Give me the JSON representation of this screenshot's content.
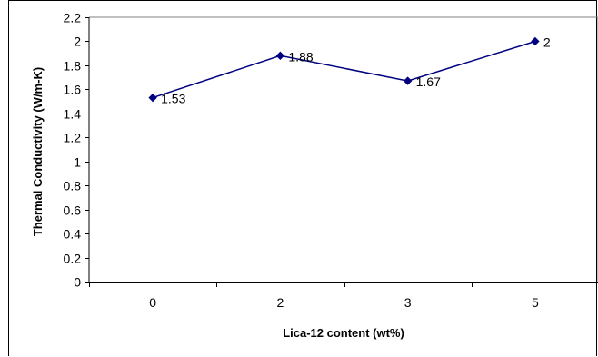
{
  "chart_data": {
    "type": "line",
    "title": "",
    "xlabel": "Lica-12 content (wt%)",
    "ylabel": "Thermal Conductivity (W/m-K)",
    "categories": [
      "0",
      "2",
      "3",
      "5"
    ],
    "series": [
      {
        "values": [
          1.53,
          1.88,
          1.67,
          2
        ],
        "data_labels": [
          "1.53",
          "1.88",
          "1.67",
          "2"
        ],
        "color": "#000080",
        "marker": "diamond"
      }
    ],
    "ylim": [
      0,
      2.2
    ],
    "yticks": [
      0,
      0.2,
      0.4,
      0.6,
      0.8,
      1,
      1.2,
      1.4,
      1.6,
      1.8,
      2,
      2.2
    ],
    "ytick_labels": [
      "0",
      "0.2",
      "0.4",
      "0.6",
      "0.8",
      "1",
      "1.2",
      "1.4",
      "1.6",
      "1.8",
      "2",
      "2.2"
    ],
    "grid": false,
    "legend": "none"
  }
}
